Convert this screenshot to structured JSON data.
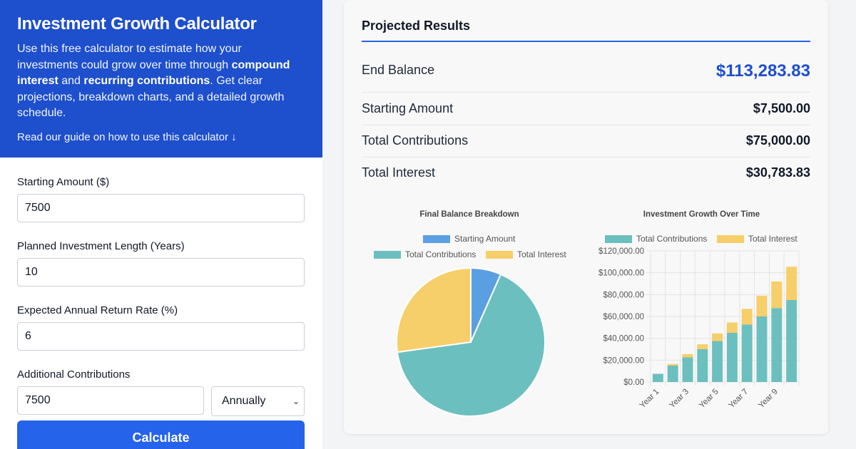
{
  "hero": {
    "title": "Investment Growth Calculator",
    "desc_1": "Use this free calculator to estimate how your investments could grow over time through ",
    "desc_bold_1": "compound interest",
    "desc_2": " and ",
    "desc_bold_2": "recurring contributions",
    "desc_3": ". Get clear projections, breakdown charts, and a detailed growth schedule.",
    "guide_link": "Read our guide on how to use this calculator ↓"
  },
  "form": {
    "starting_amount_label": "Starting Amount ($)",
    "starting_amount_value": "7500",
    "length_label": "Planned Investment Length (Years)",
    "length_value": "10",
    "rate_label": "Expected Annual Return Rate (%)",
    "rate_value": "6",
    "contrib_label": "Additional Contributions",
    "contrib_value": "7500",
    "frequency_value": "Annually",
    "calculate_label": "Calculate"
  },
  "results": {
    "title": "Projected Results",
    "end_balance_label": "End Balance",
    "end_balance_value": "$113,283.83",
    "starting_label": "Starting Amount",
    "starting_value": "$7,500.00",
    "contrib_label": "Total Contributions",
    "contrib_value": "$75,000.00",
    "interest_label": "Total Interest",
    "interest_value": "$30,783.83"
  },
  "colors": {
    "starting": "#5b9fe3",
    "contributions": "#6cbfbf",
    "interest": "#f6cf6a",
    "accent": "#1e4fcc"
  },
  "chart_data": [
    {
      "type": "pie",
      "title": "Final Balance Breakdown",
      "categories": [
        "Starting Amount",
        "Total Contributions",
        "Total Interest"
      ],
      "values": [
        7500,
        75000,
        30783.83
      ]
    },
    {
      "type": "bar",
      "stacked": true,
      "title": "Investment Growth Over Time",
      "categories": [
        "Year 1",
        "Year 2",
        "Year 3",
        "Year 4",
        "Year 5",
        "Year 6",
        "Year 7",
        "Year 8",
        "Year 9",
        "Year 10"
      ],
      "tick_labels": [
        "Year 1",
        "Year 3",
        "Year 5",
        "Year 7",
        "Year 9"
      ],
      "series": [
        {
          "name": "Total Contributions",
          "values": [
            7500,
            15000,
            22500,
            30000,
            37500,
            45000,
            52500,
            60000,
            67500,
            75000
          ]
        },
        {
          "name": "Total Interest",
          "values": [
            0,
            1500,
            3000,
            4500,
            7000,
            9500,
            14500,
            19000,
            24500,
            30500
          ]
        }
      ],
      "ylim": [
        0,
        120000
      ],
      "y_ticks": [
        "$0.00",
        "$20,000.00",
        "$40,000.00",
        "$60,000.00",
        "$80,000.00",
        "$100,000.00",
        "$120,000.00"
      ],
      "legend": "top",
      "grid": true
    }
  ]
}
